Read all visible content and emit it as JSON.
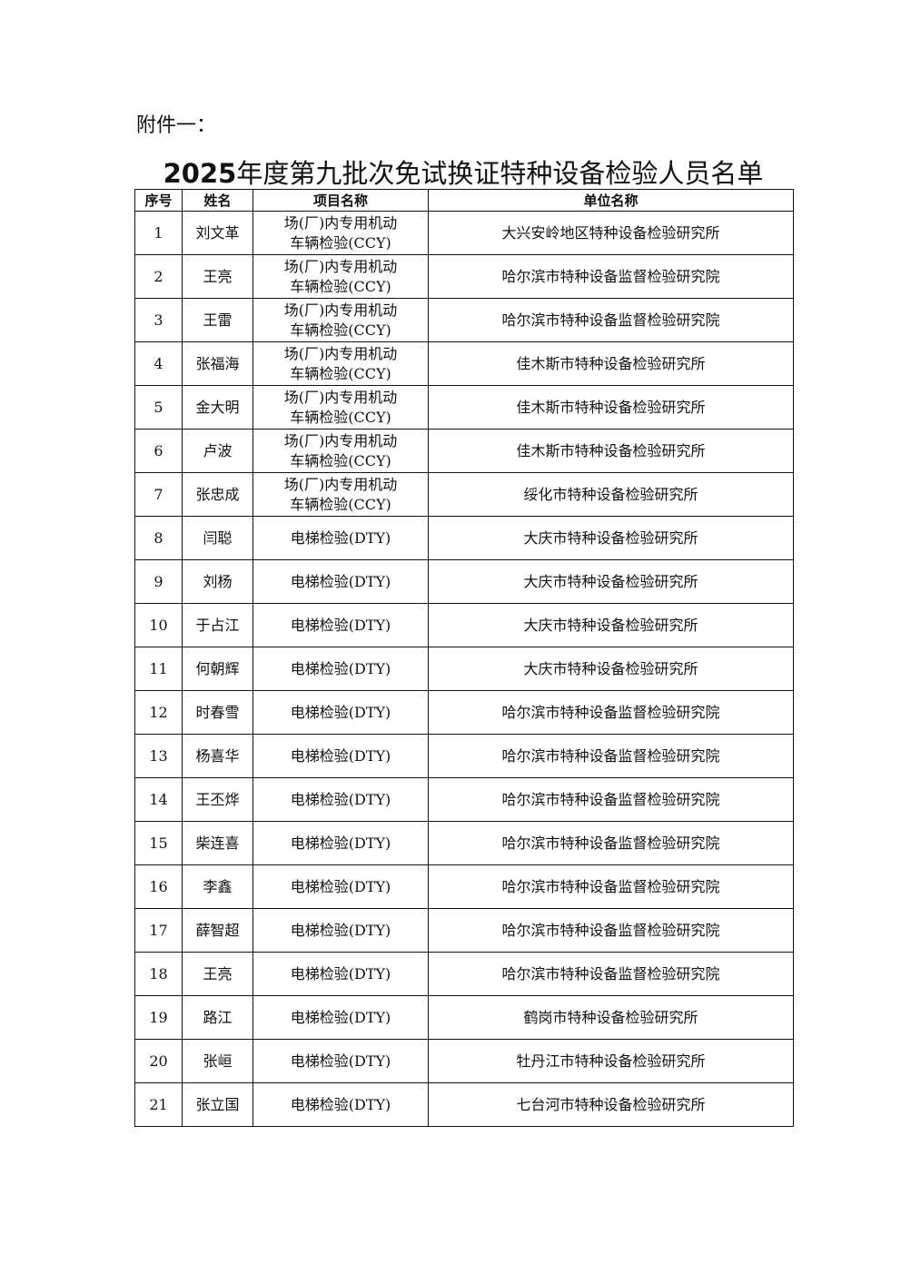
{
  "attachment_label": "附件一：",
  "title_year": "2025",
  "title_rest": "年度第九批次免试换证特种设备检验人员名单",
  "table": {
    "headers": [
      "序号",
      "姓名",
      "项目名称",
      "单位名称"
    ],
    "rows": [
      {
        "no": "1",
        "name": "刘文革",
        "project": "场(厂)内专用机动车辆检验(CCY)",
        "unit": "大兴安岭地区特种设备检验研究所"
      },
      {
        "no": "2",
        "name": "王亮",
        "project": "场(厂)内专用机动车辆检验(CCY)",
        "unit": "哈尔滨市特种设备监督检验研究院"
      },
      {
        "no": "3",
        "name": "王雷",
        "project": "场(厂)内专用机动车辆检验(CCY)",
        "unit": "哈尔滨市特种设备监督检验研究院"
      },
      {
        "no": "4",
        "name": "张福海",
        "project": "场(厂)内专用机动车辆检验(CCY)",
        "unit": "佳木斯市特种设备检验研究所"
      },
      {
        "no": "5",
        "name": "金大明",
        "project": "场(厂)内专用机动车辆检验(CCY)",
        "unit": "佳木斯市特种设备检验研究所"
      },
      {
        "no": "6",
        "name": "卢波",
        "project": "场(厂)内专用机动车辆检验(CCY)",
        "unit": "佳木斯市特种设备检验研究所"
      },
      {
        "no": "7",
        "name": "张忠成",
        "project": "场(厂)内专用机动车辆检验(CCY)",
        "unit": "绥化市特种设备检验研究所"
      },
      {
        "no": "8",
        "name": "闫聪",
        "project": "电梯检验(DTY)",
        "unit": "大庆市特种设备检验研究所"
      },
      {
        "no": "9",
        "name": "刘杨",
        "project": "电梯检验(DTY)",
        "unit": "大庆市特种设备检验研究所"
      },
      {
        "no": "10",
        "name": "于占江",
        "project": "电梯检验(DTY)",
        "unit": "大庆市特种设备检验研究所"
      },
      {
        "no": "11",
        "name": "何朝辉",
        "project": "电梯检验(DTY)",
        "unit": "大庆市特种设备检验研究所"
      },
      {
        "no": "12",
        "name": "时春雪",
        "project": "电梯检验(DTY)",
        "unit": "哈尔滨市特种设备监督检验研究院"
      },
      {
        "no": "13",
        "name": "杨喜华",
        "project": "电梯检验(DTY)",
        "unit": "哈尔滨市特种设备监督检验研究院"
      },
      {
        "no": "14",
        "name": "王丕烨",
        "project": "电梯检验(DTY)",
        "unit": "哈尔滨市特种设备监督检验研究院"
      },
      {
        "no": "15",
        "name": "柴连喜",
        "project": "电梯检验(DTY)",
        "unit": "哈尔滨市特种设备监督检验研究院"
      },
      {
        "no": "16",
        "name": "李鑫",
        "project": "电梯检验(DTY)",
        "unit": "哈尔滨市特种设备监督检验研究院"
      },
      {
        "no": "17",
        "name": "薛智超",
        "project": "电梯检验(DTY)",
        "unit": "哈尔滨市特种设备监督检验研究院"
      },
      {
        "no": "18",
        "name": "王亮",
        "project": "电梯检验(DTY)",
        "unit": "哈尔滨市特种设备监督检验研究院"
      },
      {
        "no": "19",
        "name": "路江",
        "project": "电梯检验(DTY)",
        "unit": "鹤岗市特种设备检验研究所"
      },
      {
        "no": "20",
        "name": "张峘",
        "project": "电梯检验(DTY)",
        "unit": "牡丹江市特种设备检验研究所"
      },
      {
        "no": "21",
        "name": "张立国",
        "project": "电梯检验(DTY)",
        "unit": "七台河市特种设备检验研究所"
      }
    ]
  }
}
